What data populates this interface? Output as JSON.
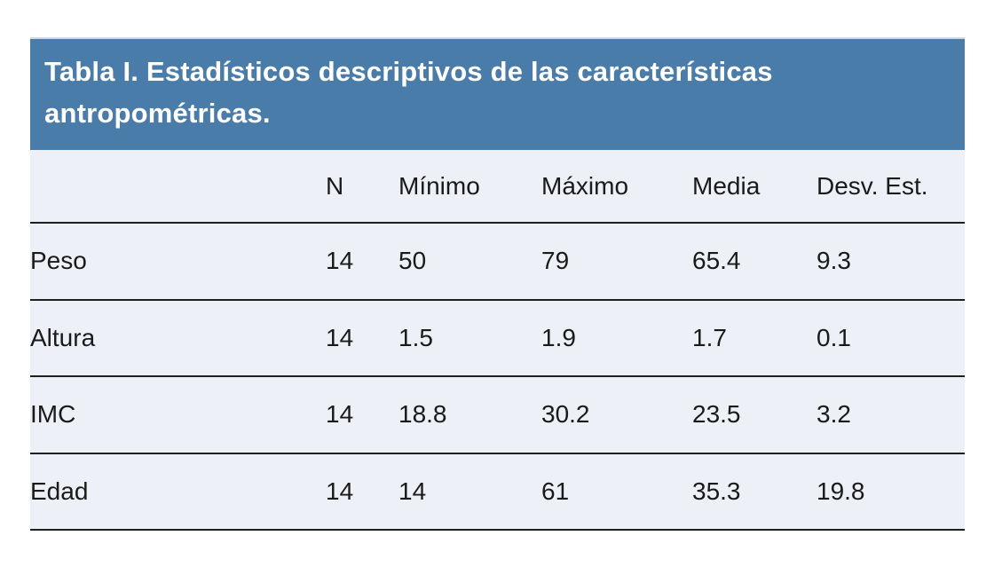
{
  "table": {
    "title": "Tabla I. Estadísticos descriptivos de las características antropométricas.",
    "columns": [
      "",
      "N",
      "Mínimo",
      "Máximo",
      "Media",
      "Desv. Est."
    ],
    "rows": [
      {
        "label": "Peso",
        "values": [
          "14",
          "50",
          "79",
          "65.4",
          "9.3"
        ]
      },
      {
        "label": "Altura",
        "values": [
          "14",
          "1.5",
          "1.9",
          "1.7",
          "0.1"
        ]
      },
      {
        "label": "IMC",
        "values": [
          "14",
          "18.8",
          "30.2",
          "23.5",
          "3.2"
        ]
      },
      {
        "label": "Edad",
        "values": [
          "14",
          "14",
          "61",
          "35.3",
          "19.8"
        ]
      }
    ]
  },
  "colors": {
    "header_bg": "#4a7caa",
    "row_bg": "#edf0f6",
    "border": "#1f1f1f",
    "title_text": "#ffffff",
    "body_text": "#1a1a1a"
  }
}
